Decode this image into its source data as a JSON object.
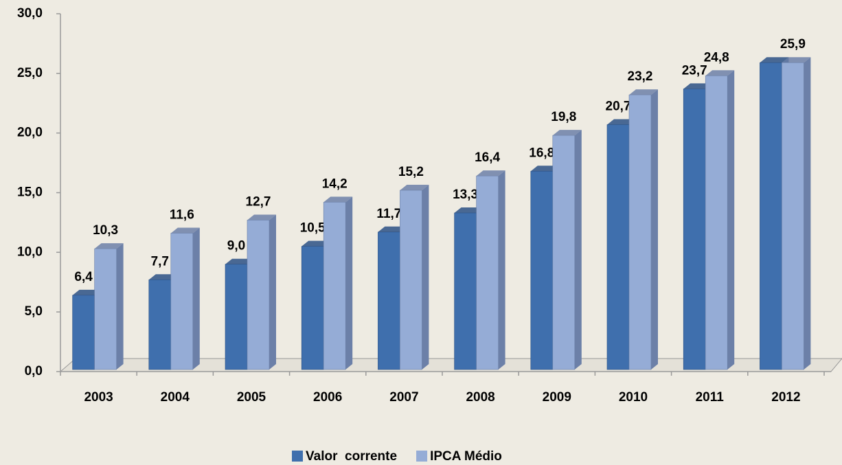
{
  "chart_data": {
    "type": "bar3d",
    "categories": [
      "2003",
      "2004",
      "2005",
      "2006",
      "2007",
      "2008",
      "2009",
      "2010",
      "2011",
      "2012"
    ],
    "series": [
      {
        "name": "Valor  corrente",
        "color": "#3f6fad",
        "side": "#2c5185",
        "values": [
          6.4,
          7.7,
          9.0,
          10.5,
          11.7,
          13.3,
          16.8,
          20.7,
          23.7,
          25.9
        ],
        "value_labels": [
          "6,4",
          "7,7",
          "9,0",
          "10,5",
          "11,7",
          "13,3",
          "16,8",
          "20,7",
          "23,7",
          null
        ]
      },
      {
        "name": "IPCA Médio",
        "color": "#95acd6",
        "side": "#6c80a8",
        "values": [
          10.3,
          11.6,
          12.7,
          14.2,
          15.2,
          16.4,
          19.8,
          23.2,
          24.8,
          25.9
        ],
        "value_labels": [
          "10,3",
          "11,6",
          "12,7",
          "14,2",
          "15,2",
          "16,4",
          "19,8",
          "23,2",
          "24,8",
          "25,9"
        ]
      }
    ],
    "ylim": [
      0,
      30
    ],
    "yticks": [
      {
        "value": 0,
        "label": "0,0"
      },
      {
        "value": 5,
        "label": "5,0"
      },
      {
        "value": 10,
        "label": "10,0"
      },
      {
        "value": 15,
        "label": "15,0"
      },
      {
        "value": 20,
        "label": "20,0"
      },
      {
        "value": 25,
        "label": "25,0"
      },
      {
        "value": 30,
        "label": "30,0"
      }
    ],
    "legend": "bottom"
  }
}
